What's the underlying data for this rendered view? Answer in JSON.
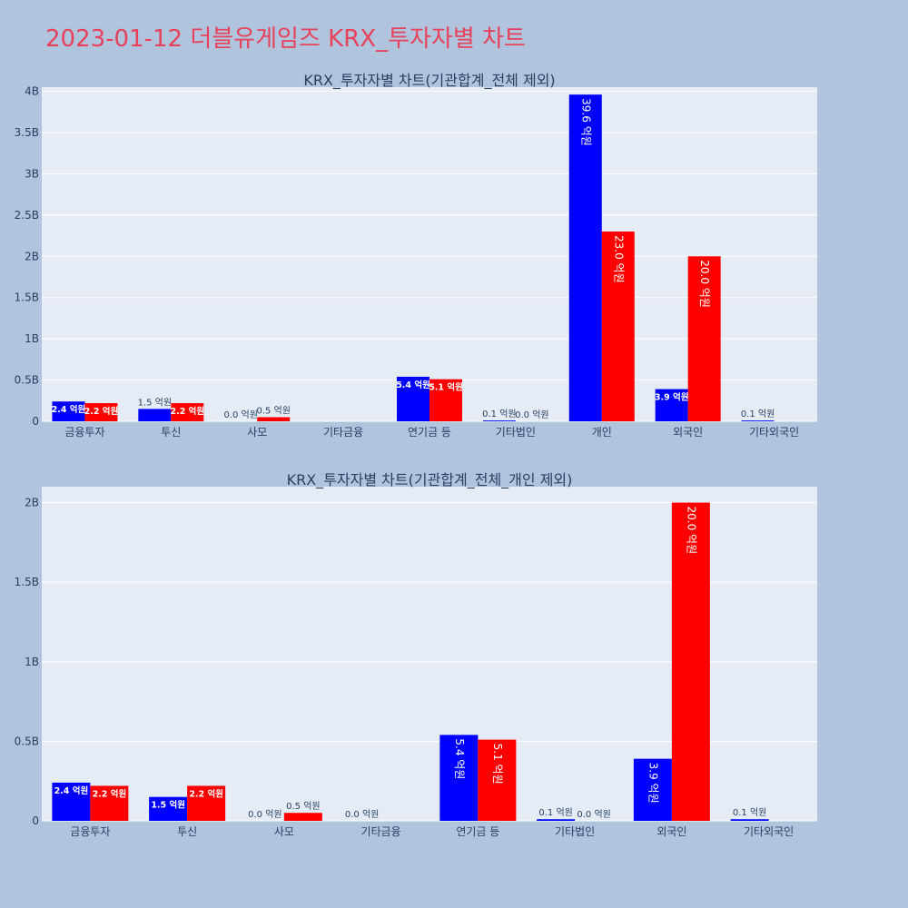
{
  "page": {
    "title": "2023-01-12 더블유게임즈 KRX_투자자별 차트"
  },
  "colors": {
    "background": "#b0c4de",
    "plot_bg": "#e5ecf6",
    "title": "#e8415a",
    "series_a": "#0000ff",
    "series_b": "#ff0000"
  },
  "chart_data": [
    {
      "type": "bar",
      "title": "KRX_투자자별 차트(기관합계_전체 제외)",
      "categories": [
        "금융투자",
        "투신",
        "사모",
        "기타금융",
        "연기금 등",
        "기타법인",
        "개인",
        "외국인",
        "기타외국인"
      ],
      "ylim": [
        0,
        4.05
      ],
      "yticks": [
        0,
        0.5,
        1,
        1.5,
        2,
        2.5,
        3,
        3.5,
        4
      ],
      "ytick_labels": [
        "0",
        "0.5B",
        "1B",
        "1.5B",
        "2B",
        "2.5B",
        "3B",
        "3.5B",
        "4B"
      ],
      "grid": true,
      "series": [
        {
          "color": "#0000ff",
          "values": [
            0.24,
            0.15,
            0.0,
            null,
            0.54,
            0.01,
            3.96,
            0.39,
            0.01
          ],
          "labels": [
            "2.4 억원",
            "1.5 억원",
            "0.0 억원",
            "",
            "5.4 억원",
            "0.1 억원",
            "39.6 억원",
            "3.9 억원",
            "0.1 억원"
          ]
        },
        {
          "color": "#ff0000",
          "values": [
            0.22,
            0.22,
            0.05,
            null,
            0.51,
            0.0,
            2.3,
            2.0,
            null
          ],
          "labels": [
            "2.2 억원",
            "2.2 억원",
            "0.5 억원",
            "",
            "5.1 억원",
            "0.0 억원",
            "23.0 억원",
            "20.0 억원",
            ""
          ]
        }
      ]
    },
    {
      "type": "bar",
      "title": "KRX_투자자별 차트(기관합계_전체_개인 제외)",
      "categories": [
        "금융투자",
        "투신",
        "사모",
        "기타금융",
        "연기금 등",
        "기타법인",
        "외국인",
        "기타외국인"
      ],
      "ylim": [
        0,
        2.1
      ],
      "yticks": [
        0,
        0.5,
        1,
        1.5,
        2
      ],
      "ytick_labels": [
        "0",
        "0.5B",
        "1B",
        "1.5B",
        "2B"
      ],
      "grid": true,
      "series": [
        {
          "color": "#0000ff",
          "values": [
            0.24,
            0.15,
            0.0,
            0.0,
            0.54,
            0.01,
            0.39,
            0.01
          ],
          "labels": [
            "2.4 억원",
            "1.5 억원",
            "0.0 억원",
            "0.0 억원",
            "5.4 억원",
            "0.1 억원",
            "3.9 억원",
            "0.1 억원"
          ]
        },
        {
          "color": "#ff0000",
          "values": [
            0.22,
            0.22,
            0.05,
            null,
            0.51,
            0.0,
            2.0,
            null
          ],
          "labels": [
            "2.2 억원",
            "2.2 억원",
            "0.5 억원",
            "",
            "5.1 억원",
            "0.0 억원",
            "20.0 억원",
            ""
          ]
        }
      ]
    }
  ]
}
